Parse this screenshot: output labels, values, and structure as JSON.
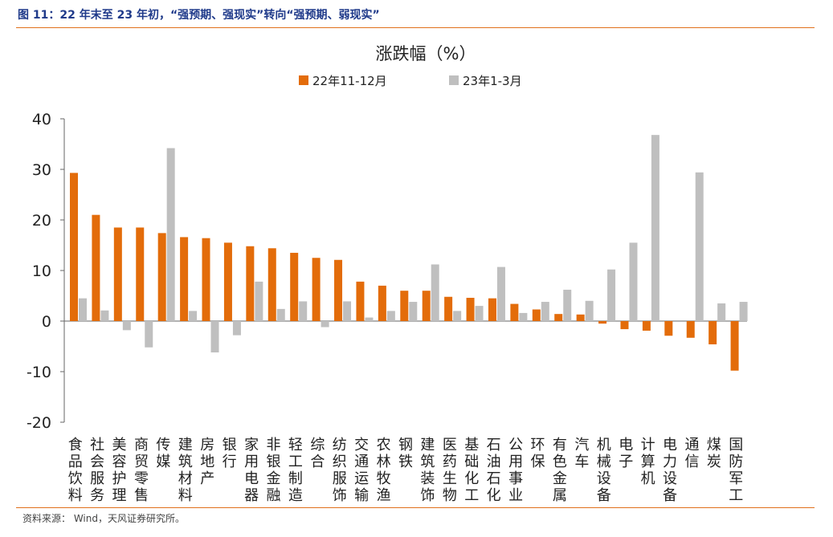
{
  "figure": {
    "title": "图 11：22 年末至 23 年初，“强预期、强现实”转向“强预期、弱现实”",
    "source": "资料来源：  Wind，天风证券研究所。"
  },
  "chart_data": {
    "type": "bar",
    "title": "涨跌幅（%）",
    "xlabel": "",
    "ylabel": "",
    "ylim": [
      -20,
      40
    ],
    "yticks": [
      -20,
      -10,
      0,
      10,
      20,
      30,
      40
    ],
    "legend_position": "top-center",
    "grid": false,
    "categories": [
      "食品饮料",
      "社会服务",
      "美容护理",
      "商贸零售",
      "传媒",
      "建筑材料",
      "房地产",
      "银行",
      "家用电器",
      "非银金融",
      "轻工制造",
      "综合",
      "纺织服饰",
      "交通运输",
      "农林牧渔",
      "钢铁",
      "建筑装饰",
      "医药生物",
      "基础化工",
      "石油石化",
      "公用事业",
      "环保",
      "有色金属",
      "汽车",
      "机械设备",
      "电子",
      "计算机",
      "电力设备",
      "通信",
      "煤炭",
      "国防军工"
    ],
    "series": [
      {
        "name": "22年11-12月",
        "color": "#e36c0a",
        "values": [
          29.3,
          21.0,
          18.5,
          18.5,
          17.4,
          16.6,
          16.4,
          15.5,
          14.8,
          14.4,
          13.5,
          12.5,
          12.1,
          7.8,
          7.0,
          6.0,
          6.0,
          4.8,
          4.6,
          4.5,
          3.4,
          2.3,
          1.4,
          1.3,
          -0.5,
          -1.6,
          -1.9,
          -2.9,
          -3.3,
          -4.6,
          -9.8
        ]
      },
      {
        "name": "23年1-3月",
        "color": "#bfbfbf",
        "values": [
          4.5,
          2.1,
          -1.8,
          -5.2,
          34.2,
          2.0,
          -6.2,
          -2.8,
          7.8,
          2.4,
          3.9,
          -1.2,
          3.9,
          0.7,
          2.0,
          3.8,
          11.2,
          2.0,
          3.0,
          10.7,
          1.6,
          3.8,
          6.2,
          4.0,
          10.2,
          15.5,
          36.8,
          0.0,
          29.4,
          3.5,
          3.8
        ]
      }
    ]
  }
}
